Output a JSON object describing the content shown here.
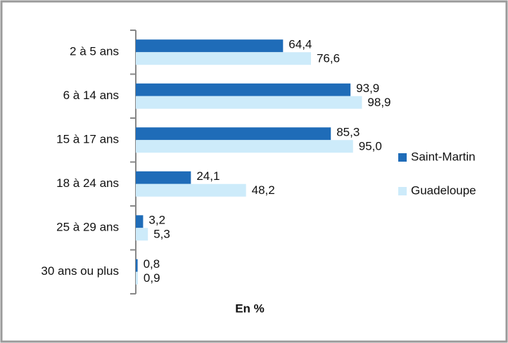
{
  "chart_data": {
    "type": "bar",
    "orientation": "horizontal",
    "categories": [
      "2 à 5 ans",
      "6 à 14 ans",
      "15 à 17 ans",
      "18 à 24 ans",
      "25 à 29 ans",
      "30 ans ou plus"
    ],
    "series": [
      {
        "name": "Saint-Martin",
        "color": "#1f6cb8",
        "values": [
          64.4,
          93.9,
          85.3,
          24.1,
          3.2,
          0.8
        ],
        "value_labels": [
          "64,4",
          "93,9",
          "85,3",
          "24,1",
          "3,2",
          "0,8"
        ]
      },
      {
        "name": "Guadeloupe",
        "color": "#cdebfa",
        "values": [
          76.6,
          98.9,
          95.0,
          48.2,
          5.3,
          0.9
        ],
        "value_labels": [
          "76,6",
          "98,9",
          "95,0",
          "48,2",
          "5,3",
          "0,9"
        ]
      }
    ],
    "xlabel": "En %",
    "xlim": [
      0,
      100
    ],
    "legend": "right"
  }
}
